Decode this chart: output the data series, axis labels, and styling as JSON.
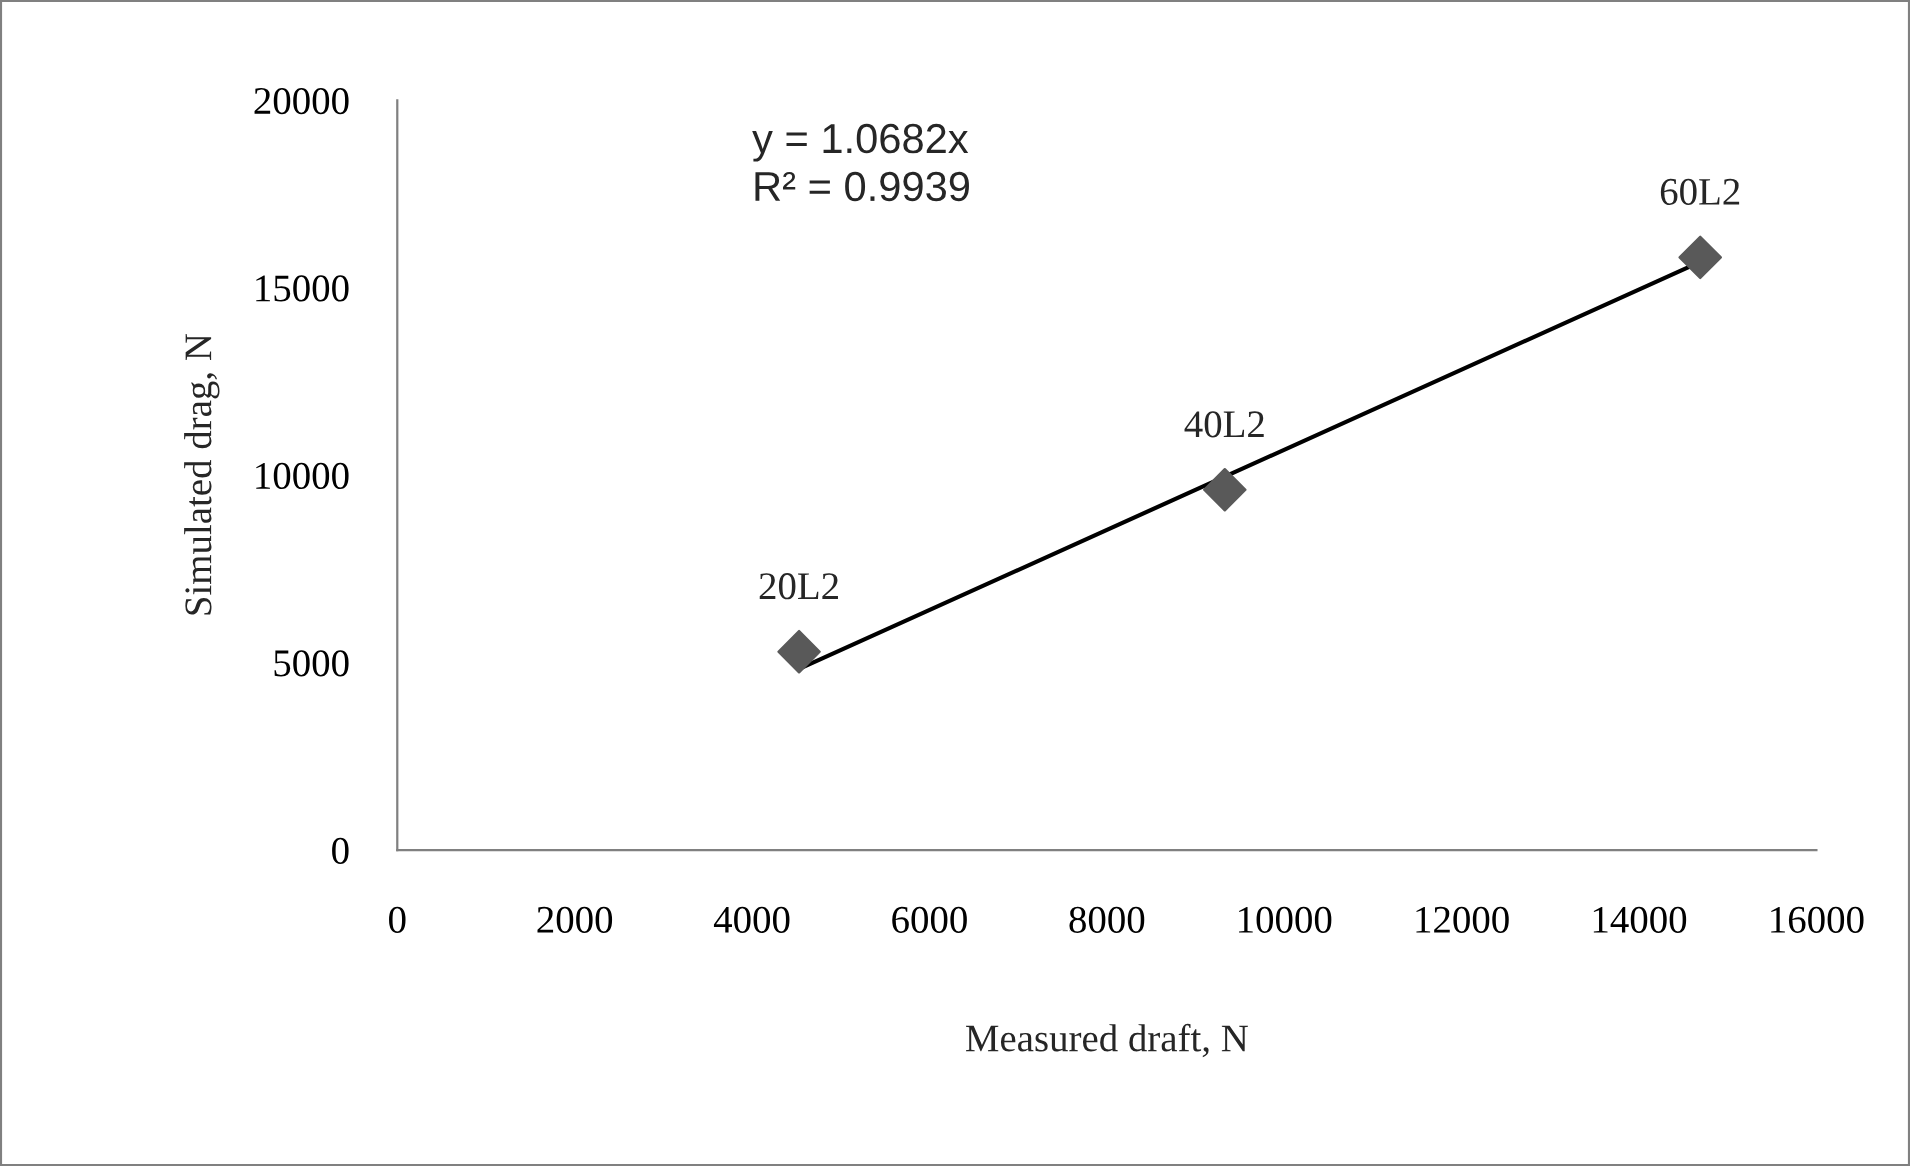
{
  "chart_data": {
    "type": "scatter",
    "xlabel": "Measured draft, N",
    "ylabel": "Simulated drag, N",
    "grid": false,
    "legend": false,
    "series": [
      {
        "color": "#595959",
        "marker": "diamond",
        "x": [
          4530,
          9330,
          14690
        ],
        "values": [
          5290,
          9610,
          15810
        ]
      },
      {
        "type": "line",
        "color": "#000000",
        "marker": "none",
        "x": [
          4530,
          14690
        ],
        "values": [
          4830,
          15690
        ],
        "line_style": "solid"
      }
    ],
    "xlim": [
      0,
      16000
    ],
    "xticks": [
      0,
      2000,
      4000,
      6000,
      8000,
      10000,
      12000,
      14000,
      16000
    ],
    "ylim": [
      0,
      20000
    ],
    "yticks": [
      0,
      5000,
      10000,
      15000,
      20000
    ],
    "annotations": [
      "y = 1.0682x\nR² = 0.9939",
      {
        "text": "20L2",
        "x": 4530,
        "y": 5290
      },
      {
        "text": "40L2",
        "x": 9330,
        "y": 9610
      },
      {
        "text": "60L2",
        "x": 14690,
        "y": 15810
      }
    ]
  }
}
